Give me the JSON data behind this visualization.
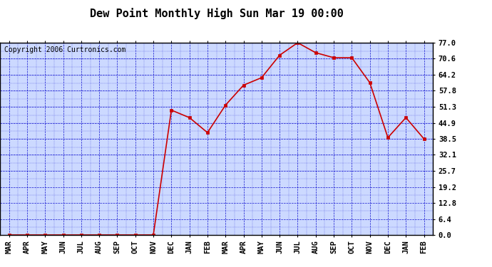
{
  "title": "Dew Point Monthly High Sun Mar 19 00:00",
  "copyright": "Copyright 2006 Curtronics.com",
  "x_labels": [
    "MAR",
    "APR",
    "MAY",
    "JUN",
    "JUL",
    "AUG",
    "SEP",
    "OCT",
    "NOV",
    "DEC",
    "JAN",
    "FEB",
    "MAR",
    "APR",
    "MAY",
    "JUN",
    "JUL",
    "AUG",
    "SEP",
    "OCT",
    "NOV",
    "DEC",
    "JAN",
    "FEB"
  ],
  "y_values": [
    0.0,
    0.0,
    0.0,
    0.0,
    0.0,
    0.0,
    0.0,
    0.0,
    0.0,
    50.0,
    47.0,
    41.0,
    52.0,
    60.0,
    63.0,
    72.0,
    77.0,
    73.0,
    71.0,
    71.0,
    61.0,
    39.0,
    47.0,
    38.5
  ],
  "y_ticks": [
    0.0,
    6.4,
    12.8,
    19.2,
    25.7,
    32.1,
    38.5,
    44.9,
    51.3,
    57.8,
    64.2,
    70.6,
    77.0
  ],
  "y_min": 0.0,
  "y_max": 77.0,
  "line_color": "#cc0000",
  "marker_color": "#cc0000",
  "bg_color": "#ccd9ff",
  "border_color": "#000000",
  "grid_color": "#0000cc",
  "title_fontsize": 11,
  "tick_fontsize": 7.5,
  "copyright_fontsize": 7
}
